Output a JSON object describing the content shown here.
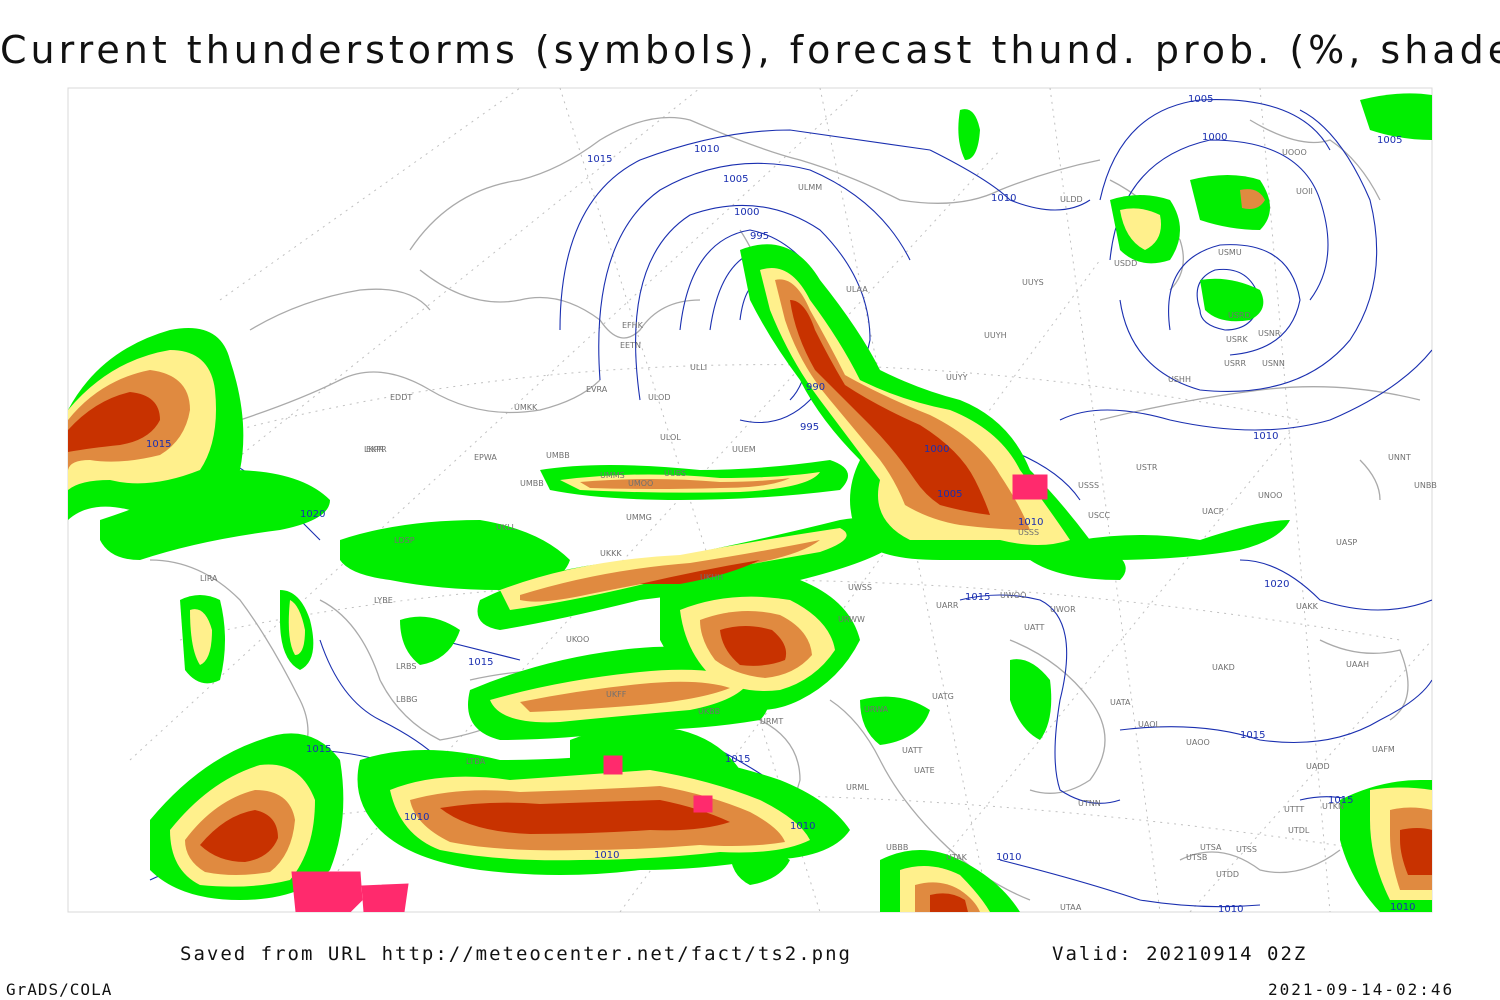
{
  "title": "Current thunderstorms (symbols), forecast thund. prob. (%, shaded)",
  "footer": {
    "saved": "Saved from URL http://meteocenter.net/fact/ts2.png",
    "valid": "Valid: 20210914 02Z",
    "software": "GrADS/COLA",
    "timestamp": "2021-09-14-02:46"
  },
  "colors": {
    "prob_low": "#00ee00",
    "prob_mid": "#fff08c",
    "prob_high": "#e08a40",
    "prob_max": "#c83200",
    "isobar": "#1a2fb0",
    "coast": "#aaaaaa",
    "storm_symbol": "#ff2a6d"
  },
  "isobar_labels": [
    "1015",
    "1010",
    "1005",
    "1000",
    "995",
    "990",
    "995",
    "1000",
    "1005",
    "1010",
    "1005",
    "1005",
    "1000",
    "1010",
    "1010",
    "1015",
    "1020",
    "1015",
    "1015",
    "1010",
    "1010",
    "1010",
    "1010",
    "1015",
    "1015",
    "1020",
    "1015",
    "1010",
    "1015",
    "1010"
  ],
  "stations": [
    "ULMM",
    "ULAA",
    "EFHK",
    "EETN",
    "EVRA",
    "ULOD",
    "ULLI",
    "ULOL",
    "EDDT",
    "UMKK",
    "EKPR",
    "EPWA",
    "UMMS",
    "UMBB",
    "UMMG",
    "UMOO",
    "UUBS",
    "UUEM",
    "UUYY",
    "UUYH",
    "UUYS",
    "ULDD",
    "USDD",
    "USMU",
    "USRD",
    "USRK",
    "USNR",
    "USRR",
    "USNN",
    "USHH",
    "UOOO",
    "UOII",
    "USSS",
    "USTR",
    "UNOO",
    "UACP",
    "USCC",
    "UNNT",
    "UNBB",
    "UASP",
    "UAKK",
    "UAAH",
    "UAKD",
    "UATA",
    "UAOL",
    "UAOO",
    "UATE",
    "UATG",
    "URWA",
    "URML",
    "URMT",
    "UATT",
    "UWOO",
    "UWOR",
    "UATT",
    "UARR",
    "UWSS",
    "URWW",
    "UKKK",
    "UKOO",
    "UKFF",
    "UKBB",
    "LRBS",
    "LYBE",
    "LDSP",
    "LIRA",
    "LBBG",
    "LTBA",
    "UKLL",
    "UMBB",
    "UBBB",
    "UTAK",
    "UTAA",
    "UTSA",
    "UTSS",
    "UTSB",
    "UTDL",
    "UAFM",
    "UADD",
    "UTKN",
    "UTNN",
    "LKPR",
    "UKHH",
    "USSS",
    "UTTT",
    "UTDD"
  ]
}
